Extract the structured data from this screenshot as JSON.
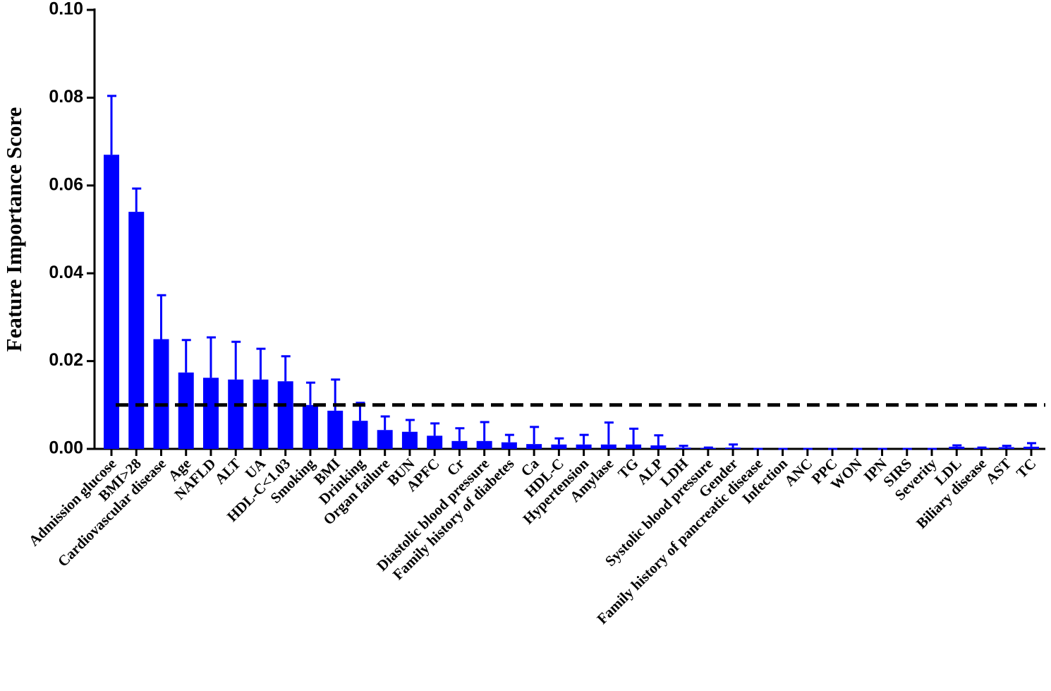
{
  "chart_data": {
    "type": "bar",
    "y_label": "Feature Importance Score",
    "categories": [
      "Admission glucose",
      "BMI>28",
      "Cardiovascular disease",
      "Age",
      "NAFLD",
      "ALT",
      "UA",
      "HDL-C<1.03",
      "Smoking",
      "BMI",
      "Drinking",
      "Organ failure",
      "BUN",
      "APFC",
      "Cr",
      "Diastolic blood pressure",
      "Family history of diabetes",
      "Ca",
      "HDL-C",
      "Hypertension",
      "Amylase",
      "TG",
      "ALP",
      "LDH",
      "Systolic blood pressure",
      "Gender",
      "Family history of pancreatic disease",
      "Infection",
      "ANC",
      "PPC",
      "WON",
      "IPN",
      "SIRS",
      "Severity",
      "LDL",
      "Biliary disease",
      "AST",
      "TC"
    ],
    "values": [
      0.067,
      0.054,
      0.025,
      0.0174,
      0.0162,
      0.0158,
      0.0158,
      0.0154,
      0.01,
      0.0087,
      0.0064,
      0.0043,
      0.0039,
      0.003,
      0.0018,
      0.0018,
      0.0015,
      0.0011,
      0.001,
      0.001,
      0.001,
      0.001,
      0.0008,
      0.0003,
      0.0002,
      0.0003,
      0,
      0,
      0,
      0,
      0,
      0,
      0,
      0,
      0.0005,
      0.0002,
      0.0004,
      0.0005
    ],
    "errors": [
      0.0134,
      0.0053,
      0.01,
      0.0074,
      0.0092,
      0.0086,
      0.007,
      0.0057,
      0.0051,
      0.0071,
      0.0041,
      0.0031,
      0.0027,
      0.0028,
      0.0029,
      0.0043,
      0.0017,
      0.0039,
      0.0014,
      0.0022,
      0.005,
      0.0036,
      0.0023,
      0.0004,
      0.0001,
      0.0007,
      0,
      0,
      0,
      0,
      0,
      0,
      0,
      0,
      0.0003,
      0.0001,
      0.0003,
      0.0008
    ],
    "color": "#0000ff",
    "threshold": 0.01,
    "ylim": [
      0,
      0.1
    ],
    "yticks": [
      {
        "value": 0,
        "label": "0.00"
      },
      0.02,
      0.04,
      0.06,
      0.08,
      {
        "value": 0.1,
        "label": "0.10"
      }
    ],
    "grid": false
  }
}
